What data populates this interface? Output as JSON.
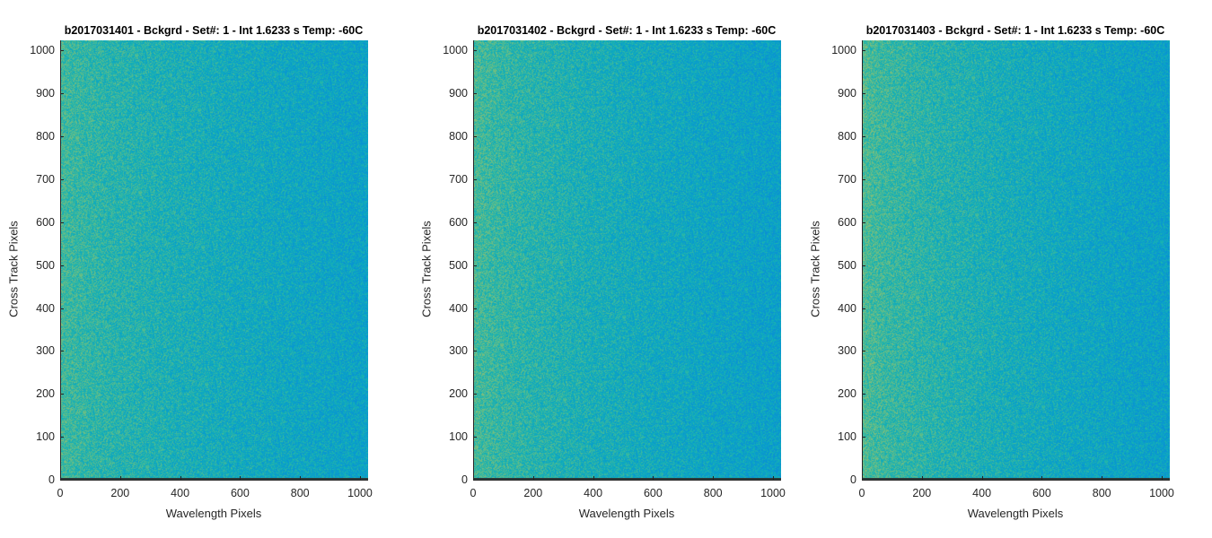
{
  "chart_data": [
    {
      "type": "heatmap",
      "title": "b2017031401 - Bckgrd - Set#: 1 - Int 1.6233 s Temp: -60C",
      "xlabel": "Wavelength Pixels",
      "ylabel": "Cross Track Pixels",
      "xlim": [
        0,
        1024
      ],
      "ylim": [
        0,
        1024
      ],
      "xticks": [
        0,
        200,
        400,
        600,
        800,
        1000
      ],
      "yticks": [
        0,
        100,
        200,
        300,
        400,
        500,
        600,
        700,
        800,
        900,
        1000
      ],
      "colormap": "parula",
      "description_values": {
        "left_edge_level": 0.62,
        "right_edge_level": 0.48,
        "noise": 0.1
      }
    },
    {
      "type": "heatmap",
      "title": "b2017031402 - Bckgrd - Set#: 1 - Int 1.6233 s Temp: -60C",
      "xlabel": "Wavelength Pixels",
      "ylabel": "Cross Track Pixels",
      "xlim": [
        0,
        1024
      ],
      "ylim": [
        0,
        1024
      ],
      "xticks": [
        0,
        200,
        400,
        600,
        800,
        1000
      ],
      "yticks": [
        0,
        100,
        200,
        300,
        400,
        500,
        600,
        700,
        800,
        900,
        1000
      ],
      "colormap": "parula",
      "description_values": {
        "left_edge_level": 0.63,
        "right_edge_level": 0.47,
        "noise": 0.1
      }
    },
    {
      "type": "heatmap",
      "title": "b2017031403 - Bckgrd - Set#: 1 - Int 1.6233 s Temp: -60C",
      "xlabel": "Wavelength Pixels",
      "ylabel": "Cross Track Pixels",
      "xlim": [
        0,
        1024
      ],
      "ylim": [
        0,
        1024
      ],
      "xticks": [
        0,
        200,
        400,
        600,
        800,
        1000
      ],
      "yticks": [
        0,
        100,
        200,
        300,
        400,
        500,
        600,
        700,
        800,
        900,
        1000
      ],
      "colormap": "parula",
      "description_values": {
        "left_edge_level": 0.64,
        "right_edge_level": 0.47,
        "noise": 0.1
      }
    }
  ]
}
